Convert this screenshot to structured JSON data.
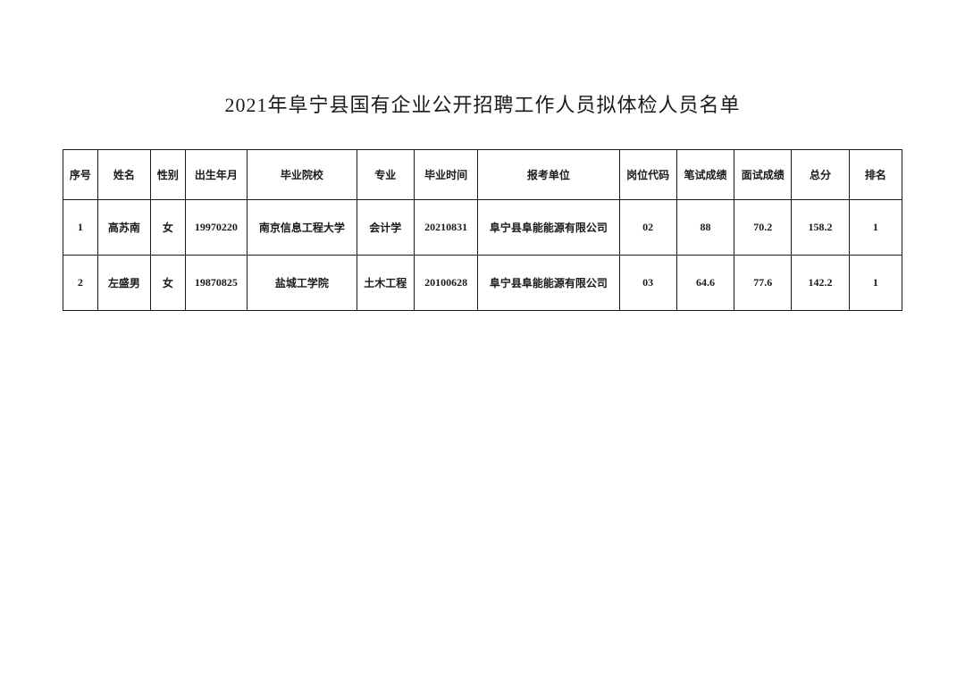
{
  "title": "2021年阜宁县国有企业公开招聘工作人员拟体检人员名单",
  "table": {
    "columns": [
      "序号",
      "姓名",
      "性别",
      "出生年月",
      "毕业院校",
      "专业",
      "毕业时间",
      "报考单位",
      "岗位代码",
      "笔试成绩",
      "面试成绩",
      "总分",
      "排名"
    ],
    "rows": [
      {
        "seq": "1",
        "name": "高苏南",
        "gender": "女",
        "birth": "19970220",
        "school": "南京信息工程大学",
        "major": "会计学",
        "gradtime": "20210831",
        "unit": "阜宁县阜能能源有限公司",
        "poscode": "02",
        "written": "88",
        "interview": "70.2",
        "total": "158.2",
        "rank": "1"
      },
      {
        "seq": "2",
        "name": "左盛男",
        "gender": "女",
        "birth": "19870825",
        "school": "盐城工学院",
        "major": "土木工程",
        "gradtime": "20100628",
        "unit": "阜宁县阜能能源有限公司",
        "poscode": "03",
        "written": "64.6",
        "interview": "77.6",
        "total": "142.2",
        "rank": "1"
      }
    ]
  },
  "style": {
    "background_color": "#ffffff",
    "text_color": "#1a1a1a",
    "border_color": "#1a1a1a",
    "title_fontsize": 22,
    "cell_fontsize": 12,
    "header_row_height": 56,
    "data_row_height": 62
  }
}
